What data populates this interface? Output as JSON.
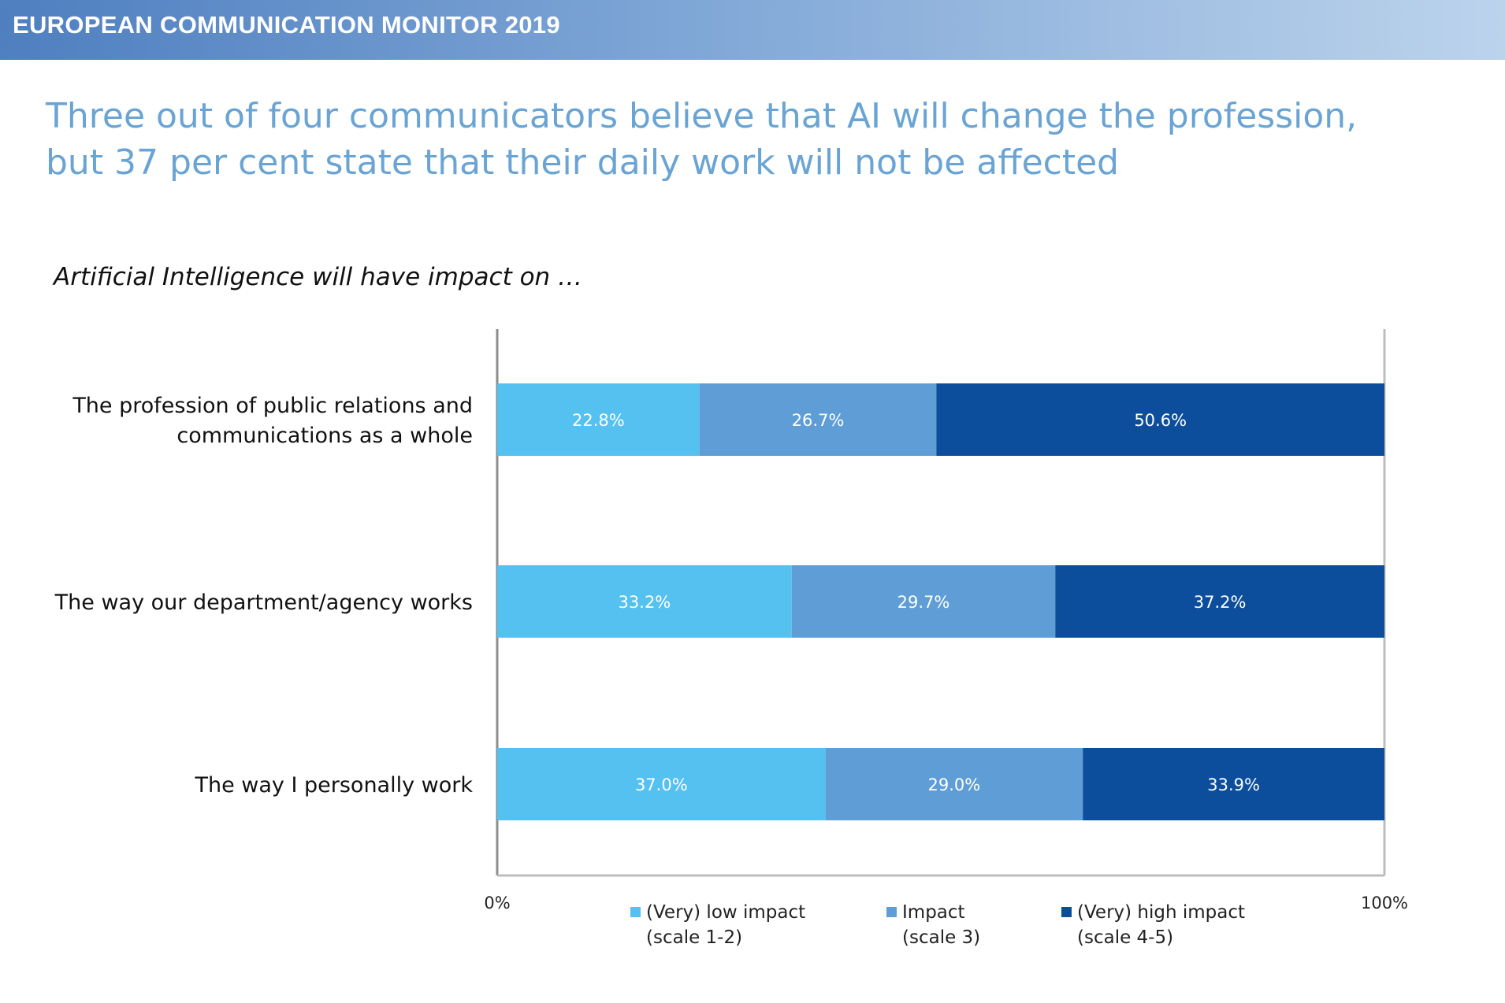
{
  "banner": {
    "text": "EUROPEAN COMMUNICATION MONITOR 2019"
  },
  "headline": {
    "line1": "Three out of four communicators believe that AI will change the profession,",
    "line2": "but 37 per cent state that their daily work will not be affected"
  },
  "subtitle": "Artificial Intelligence will have impact on …",
  "chart_data": {
    "type": "bar",
    "orientation": "horizontal",
    "stacked": true,
    "categories": [
      [
        "The profession of public relations and",
        "communications as a whole"
      ],
      [
        "The way our department/agency works"
      ],
      [
        "The way I personally work"
      ]
    ],
    "series": [
      {
        "name": [
          "(Very) low impact",
          "(scale 1-2)"
        ],
        "color": "#55c1f0",
        "values": [
          22.8,
          33.2,
          37.0
        ],
        "labels": [
          "22.8%",
          "33.2%",
          "37.0%"
        ]
      },
      {
        "name": [
          "Impact",
          "(scale 3)"
        ],
        "color": "#5f9dd6",
        "values": [
          26.7,
          29.7,
          29.0
        ],
        "labels": [
          "26.7%",
          "29.7%",
          "29.0%"
        ]
      },
      {
        "name": [
          "(Very) high impact",
          "(scale 4-5)"
        ],
        "color": "#0c4e9c",
        "values": [
          50.6,
          37.2,
          33.9
        ],
        "labels": [
          "50.6%",
          "37.2%",
          "33.9%"
        ]
      }
    ],
    "x_ticks": [
      "0%",
      "100%"
    ],
    "xlim": [
      0,
      100
    ],
    "grid": false,
    "legend": "bottom"
  }
}
